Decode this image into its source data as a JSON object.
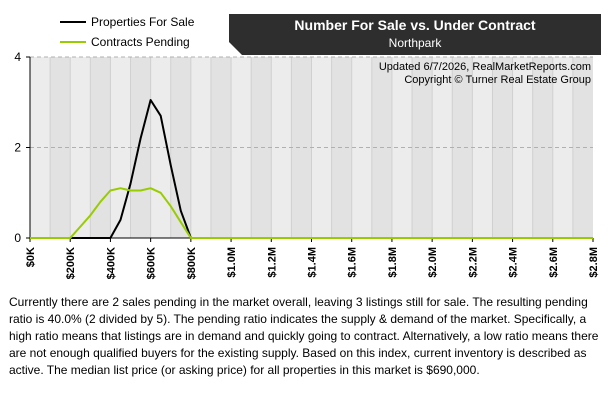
{
  "chart_data": {
    "type": "line",
    "title": "Number For Sale vs. Under Contract",
    "subtitle": "Northpark",
    "credit_lines": [
      "Updated 6/7/2026, RealMarketReports.com",
      "Copyright © Turner Real Estate Group"
    ],
    "x_tick_labels": [
      "$0K",
      "$200K",
      "$400K",
      "$600K",
      "$800K",
      "$1.0M",
      "$1.2M",
      "$1.4M",
      "$1.6M",
      "$1.8M",
      "$2.0M",
      "$2.2M",
      "$2.4M",
      "$2.6M",
      "$2.8M"
    ],
    "y_tick_labels": [
      "0",
      "2",
      "4"
    ],
    "xlim": [
      0,
      2800000
    ],
    "ylim": [
      0,
      4
    ],
    "grid": true,
    "legend_position": "top-left",
    "series": [
      {
        "name": "Properties For Sale",
        "color": "#000000",
        "x": [
          0,
          100000,
          200000,
          300000,
          350000,
          400000,
          450000,
          500000,
          550000,
          600000,
          650000,
          700000,
          750000,
          800000,
          900000,
          1000000,
          1200000,
          1400000,
          1600000,
          1800000,
          2000000,
          2200000,
          2400000,
          2600000,
          2800000
        ],
        "y": [
          0,
          0,
          0,
          0,
          0,
          0,
          0.4,
          1.2,
          2.2,
          3.05,
          2.7,
          1.6,
          0.6,
          0,
          0,
          0,
          0,
          0,
          0,
          0,
          0,
          0,
          0,
          0,
          0
        ]
      },
      {
        "name": "Contracts Pending",
        "color": "#99cc00",
        "x": [
          0,
          100000,
          200000,
          300000,
          350000,
          400000,
          450000,
          500000,
          550000,
          600000,
          650000,
          700000,
          750000,
          800000,
          900000,
          1000000,
          1200000,
          1400000,
          1600000,
          1800000,
          2000000,
          2200000,
          2400000,
          2600000,
          2800000
        ],
        "y": [
          0,
          0,
          0,
          0.5,
          0.8,
          1.05,
          1.1,
          1.05,
          1.05,
          1.1,
          1.0,
          0.7,
          0.35,
          0,
          0,
          0,
          0,
          0,
          0,
          0,
          0,
          0,
          0,
          0,
          0
        ]
      }
    ]
  },
  "description": "Currently there are 2 sales pending in the market overall, leaving 3 listings still for sale.  The resulting pending ratio is 40.0% (2 divided by 5).  The pending ratio indicates the supply & demand of the market.  Specifically, a high ratio means that listings are in demand and quickly going to contract.  Alternatively, a low ratio means there are not enough qualified buyers for the existing supply.  Based on this index, current inventory is described as active.  The median list price (or asking price) for all properties in this market is $690,000."
}
